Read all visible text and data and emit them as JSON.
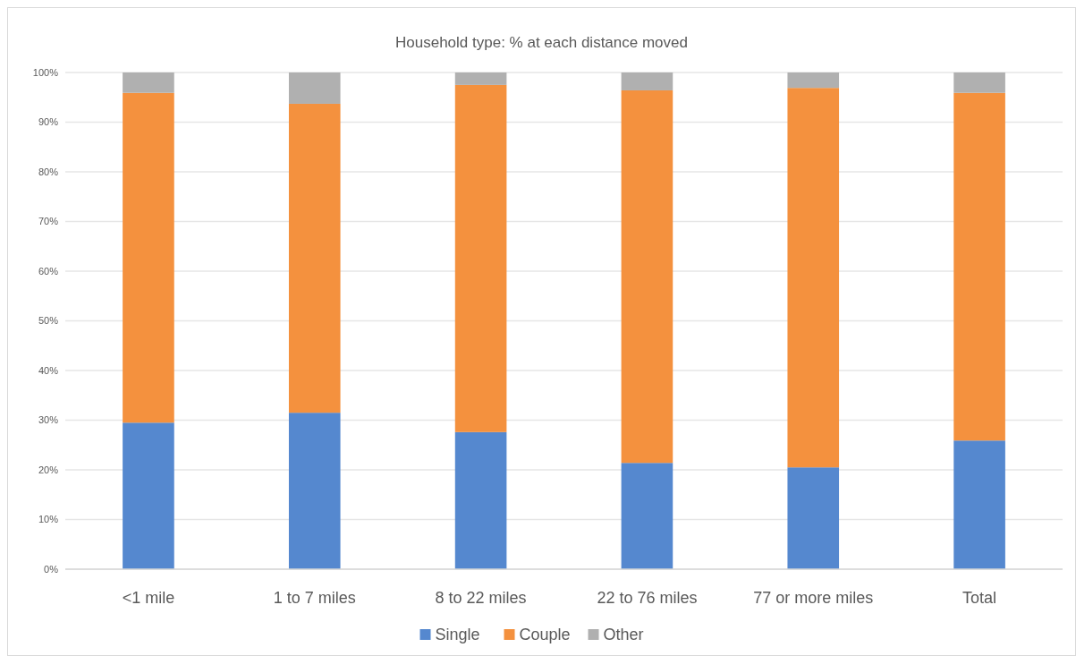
{
  "chart_data": {
    "type": "bar",
    "title": "Household type: % at each distance moved",
    "categories": [
      "<1 mile",
      "1 to 7 miles",
      "8 to 22 miles",
      "22 to 76 miles",
      "77 or more miles",
      "Total"
    ],
    "stacked": true,
    "series": [
      {
        "name": "Single",
        "color": "#5588cf",
        "values": [
          29.5,
          31.5,
          27.6,
          21.4,
          20.5,
          25.9
        ]
      },
      {
        "name": "Couple",
        "color": "#f4913e",
        "values": [
          66.4,
          62.2,
          69.9,
          75.0,
          76.4,
          70.0
        ]
      },
      {
        "name": "Other",
        "color": "#b0b0b0",
        "values": [
          4.1,
          6.3,
          2.5,
          3.6,
          3.1,
          4.1
        ]
      }
    ],
    "ylim": [
      0,
      100
    ],
    "yticks": [
      {
        "value": 0,
        "label": "0%"
      },
      {
        "value": 10,
        "label": "10%"
      },
      {
        "value": 20,
        "label": "20%"
      },
      {
        "value": 30,
        "label": "30%"
      },
      {
        "value": 40,
        "label": "40%"
      },
      {
        "value": 50,
        "label": "50%"
      },
      {
        "value": 60,
        "label": "60%"
      },
      {
        "value": 70,
        "label": "70%"
      },
      {
        "value": 80,
        "label": "80%"
      },
      {
        "value": 90,
        "label": "90%"
      },
      {
        "value": 100,
        "label": "100%"
      }
    ],
    "grid": "y",
    "legend": "bottom"
  }
}
